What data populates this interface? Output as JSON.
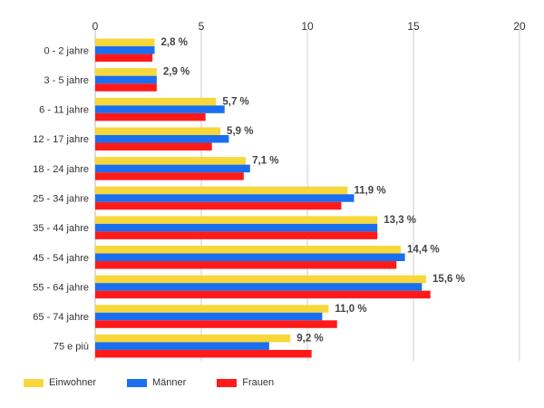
{
  "chart_data": {
    "type": "bar",
    "orientation": "horizontal",
    "categories": [
      "0 - 2 jahre",
      "3 - 5 jahre",
      "6 - 11 jahre",
      "12 - 17 jahre",
      "18 - 24 jahre",
      "25 - 34 jahre",
      "35 - 44 jahre",
      "45 - 54 jahre",
      "55 - 64 jahre",
      "65 - 74 jahre",
      "75 e più"
    ],
    "series": [
      {
        "name": "Einwohner",
        "color": "#f7d73a",
        "values": [
          2.8,
          2.9,
          5.7,
          5.9,
          7.1,
          11.9,
          13.3,
          14.4,
          15.6,
          11.0,
          9.2
        ]
      },
      {
        "name": "Männer",
        "color": "#1a6ff0",
        "values": [
          2.8,
          2.9,
          6.1,
          6.3,
          7.3,
          12.2,
          13.3,
          14.6,
          15.4,
          10.7,
          8.2
        ]
      },
      {
        "name": "Frauen",
        "color": "#ff1a1a",
        "values": [
          2.7,
          2.9,
          5.2,
          5.5,
          7.0,
          11.6,
          13.3,
          14.2,
          15.8,
          11.4,
          10.2
        ]
      }
    ],
    "data_labels": [
      "2,8 %",
      "2,9 %",
      "5,7 %",
      "5,9 %",
      "7,1 %",
      "11,9 %",
      "13,3 %",
      "14,4 %",
      "15,6 %",
      "11,0 %",
      "9,2 %"
    ],
    "x_ticks": [
      "0",
      "5",
      "10",
      "15",
      "20"
    ],
    "xlim": [
      0,
      20
    ],
    "grid": true,
    "legend_position": "bottom-left"
  }
}
